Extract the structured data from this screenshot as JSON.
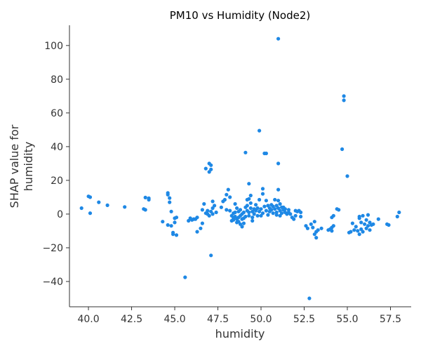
{
  "chart_data": {
    "type": "scatter",
    "title": "PM10 vs Humidity (Node2)",
    "xlabel": "humidity",
    "ylabel": [
      "SHAP value for",
      "humidity"
    ],
    "xlim": [
      38.9,
      58.7
    ],
    "ylim": [
      -55,
      112
    ],
    "xticks": [
      40.0,
      42.5,
      45.0,
      47.5,
      50.0,
      52.5,
      55.0,
      57.5
    ],
    "xtick_labels": [
      "40.0",
      "42.5",
      "45.0",
      "47.5",
      "50.0",
      "52.5",
      "55.0",
      "57.5"
    ],
    "yticks": [
      -40,
      -20,
      0,
      20,
      40,
      60,
      80,
      100
    ],
    "ytick_labels": [
      "−40",
      "−20",
      "0",
      "20",
      "40",
      "60",
      "80",
      "100"
    ],
    "grid": false,
    "marker_color": "#1E88E5",
    "series": [
      {
        "points": [
          [
            39.6,
            3.5
          ],
          [
            40.0,
            10.5
          ],
          [
            40.1,
            10.0
          ],
          [
            40.1,
            0.5
          ],
          [
            40.6,
            7.0
          ],
          [
            41.1,
            5.2
          ],
          [
            42.1,
            4.2
          ],
          [
            43.2,
            3.0
          ],
          [
            43.3,
            2.5
          ],
          [
            43.3,
            9.8
          ],
          [
            43.5,
            8.5
          ],
          [
            43.5,
            9.4
          ],
          [
            44.3,
            -4.5
          ],
          [
            44.6,
            12.5
          ],
          [
            44.6,
            11.5
          ],
          [
            44.6,
            -6.5
          ],
          [
            44.7,
            9.5
          ],
          [
            44.7,
            7.0
          ],
          [
            44.8,
            1.5
          ],
          [
            44.8,
            -7.0
          ],
          [
            44.9,
            -11.0
          ],
          [
            44.9,
            -12.0
          ],
          [
            45.0,
            -2.5
          ],
          [
            45.0,
            -5.0
          ],
          [
            45.1,
            -12.5
          ],
          [
            45.1,
            -2.0
          ],
          [
            45.6,
            -37.5
          ],
          [
            45.8,
            -4.0
          ],
          [
            45.9,
            -2.5
          ],
          [
            46.0,
            -3.5
          ],
          [
            46.1,
            -3.0
          ],
          [
            46.2,
            -3.0
          ],
          [
            46.3,
            -2.0
          ],
          [
            46.3,
            -10.5
          ],
          [
            46.5,
            -8.5
          ],
          [
            46.6,
            -5.5
          ],
          [
            46.6,
            2.5
          ],
          [
            46.7,
            6.0
          ],
          [
            46.8,
            27.0
          ],
          [
            46.8,
            0.5
          ],
          [
            46.9,
            2.0
          ],
          [
            46.9,
            0.0
          ],
          [
            47.0,
            25.0
          ],
          [
            47.0,
            30.0
          ],
          [
            47.0,
            -1.0
          ],
          [
            47.1,
            29.0
          ],
          [
            47.1,
            26.5
          ],
          [
            47.1,
            1.5
          ],
          [
            47.1,
            -24.5
          ],
          [
            47.2,
            7.5
          ],
          [
            47.2,
            3.5
          ],
          [
            47.2,
            0.0
          ],
          [
            47.3,
            5.0
          ],
          [
            47.4,
            1.0
          ],
          [
            47.7,
            4.0
          ],
          [
            47.8,
            7.5
          ],
          [
            47.9,
            8.5
          ],
          [
            48.0,
            11.5
          ],
          [
            48.0,
            2.5
          ],
          [
            48.1,
            14.5
          ],
          [
            48.2,
            10.0
          ],
          [
            48.2,
            2.0
          ],
          [
            48.3,
            -1.0
          ],
          [
            48.3,
            -4.0
          ],
          [
            48.4,
            0.5
          ],
          [
            48.4,
            -3.5
          ],
          [
            48.4,
            -2.5
          ],
          [
            48.5,
            6.0
          ],
          [
            48.5,
            1.0
          ],
          [
            48.5,
            -1.5
          ],
          [
            48.6,
            3.5
          ],
          [
            48.6,
            -3.0
          ],
          [
            48.6,
            -5.0
          ],
          [
            48.7,
            1.5
          ],
          [
            48.7,
            -2.0
          ],
          [
            48.7,
            -4.5
          ],
          [
            48.8,
            2.5
          ],
          [
            48.8,
            -1.0
          ],
          [
            48.8,
            -6.0
          ],
          [
            48.9,
            0.0
          ],
          [
            48.9,
            -3.0
          ],
          [
            48.9,
            -7.5
          ],
          [
            49.0,
            1.0
          ],
          [
            49.0,
            -2.5
          ],
          [
            49.0,
            -5.5
          ],
          [
            49.1,
            36.5
          ],
          [
            49.1,
            4.0
          ],
          [
            49.1,
            -1.5
          ],
          [
            49.2,
            8.5
          ],
          [
            49.2,
            5.0
          ],
          [
            49.2,
            2.0
          ],
          [
            49.3,
            18.0
          ],
          [
            49.3,
            9.0
          ],
          [
            49.3,
            1.0
          ],
          [
            49.3,
            -1.0
          ],
          [
            49.4,
            11.0
          ],
          [
            49.4,
            6.5
          ],
          [
            49.4,
            3.5
          ],
          [
            49.5,
            1.5
          ],
          [
            49.5,
            -2.0
          ],
          [
            49.5,
            -4.0
          ],
          [
            49.6,
            3.0
          ],
          [
            49.6,
            0.0
          ],
          [
            49.7,
            2.0
          ],
          [
            49.7,
            5.5
          ],
          [
            49.8,
            3.5
          ],
          [
            49.8,
            -1.0
          ],
          [
            49.9,
            49.5
          ],
          [
            49.9,
            8.5
          ],
          [
            49.9,
            1.5
          ],
          [
            50.0,
            3.0
          ],
          [
            50.0,
            -1.0
          ],
          [
            50.1,
            15.0
          ],
          [
            50.1,
            12.0
          ],
          [
            50.1,
            0.5
          ],
          [
            50.2,
            36.0
          ],
          [
            50.2,
            4.5
          ],
          [
            50.3,
            36.0
          ],
          [
            50.3,
            8.0
          ],
          [
            50.3,
            2.0
          ],
          [
            50.4,
            5.0
          ],
          [
            50.4,
            -0.5
          ],
          [
            50.5,
            3.5
          ],
          [
            50.5,
            1.5
          ],
          [
            50.6,
            5.5
          ],
          [
            50.6,
            2.5
          ],
          [
            50.7,
            4.5
          ],
          [
            50.7,
            0.5
          ],
          [
            50.8,
            8.5
          ],
          [
            50.8,
            3.0
          ],
          [
            50.9,
            5.0
          ],
          [
            50.9,
            1.0
          ],
          [
            50.9,
            -0.5
          ],
          [
            51.0,
            104.0
          ],
          [
            51.0,
            30.0
          ],
          [
            51.0,
            14.5
          ],
          [
            51.0,
            8.0
          ],
          [
            51.0,
            3.5
          ],
          [
            51.1,
            2.0
          ],
          [
            51.1,
            6.0
          ],
          [
            51.1,
            -1.0
          ],
          [
            51.2,
            4.0
          ],
          [
            51.2,
            0.5
          ],
          [
            51.3,
            2.5
          ],
          [
            51.3,
            4.0
          ],
          [
            51.4,
            1.0
          ],
          [
            51.4,
            3.0
          ],
          [
            51.5,
            0.0
          ],
          [
            51.6,
            2.5
          ],
          [
            51.6,
            1.0
          ],
          [
            51.7,
            0.0
          ],
          [
            51.8,
            -2.0
          ],
          [
            51.9,
            -3.0
          ],
          [
            52.0,
            2.0
          ],
          [
            52.0,
            -1.0
          ],
          [
            52.1,
            1.5
          ],
          [
            52.2,
            2.0
          ],
          [
            52.3,
            1.0
          ],
          [
            52.3,
            -1.5
          ],
          [
            52.6,
            -7.0
          ],
          [
            52.7,
            -8.5
          ],
          [
            52.8,
            -50.0
          ],
          [
            52.9,
            -6.0
          ],
          [
            53.0,
            -8.0
          ],
          [
            53.1,
            -4.5
          ],
          [
            53.1,
            -12.0
          ],
          [
            53.2,
            -14.0
          ],
          [
            53.2,
            -10.5
          ],
          [
            53.3,
            -9.5
          ],
          [
            53.5,
            -8.5
          ],
          [
            53.9,
            -9.5
          ],
          [
            54.0,
            -9.0
          ],
          [
            54.1,
            -10.0
          ],
          [
            54.1,
            -8.0
          ],
          [
            54.1,
            -2.0
          ],
          [
            54.2,
            -7.0
          ],
          [
            54.2,
            -1.0
          ],
          [
            54.4,
            3.0
          ],
          [
            54.5,
            2.5
          ],
          [
            54.7,
            38.5
          ],
          [
            54.8,
            67.5
          ],
          [
            54.8,
            70.0
          ],
          [
            55.0,
            22.5
          ],
          [
            55.1,
            -11.0
          ],
          [
            55.2,
            -10.5
          ],
          [
            55.3,
            -5.5
          ],
          [
            55.4,
            -9.5
          ],
          [
            55.5,
            -7.5
          ],
          [
            55.6,
            -10.0
          ],
          [
            55.7,
            -1.5
          ],
          [
            55.7,
            -2.5
          ],
          [
            55.7,
            -12.0
          ],
          [
            55.8,
            -5.0
          ],
          [
            55.8,
            -9.0
          ],
          [
            55.9,
            -10.5
          ],
          [
            55.9,
            -1.0
          ],
          [
            56.0,
            -6.0
          ],
          [
            56.1,
            -3.5
          ],
          [
            56.1,
            -8.5
          ],
          [
            56.2,
            -0.5
          ],
          [
            56.2,
            -7.0
          ],
          [
            56.3,
            -5.0
          ],
          [
            56.3,
            -9.5
          ],
          [
            56.4,
            -6.5
          ],
          [
            56.5,
            -6.0
          ],
          [
            56.8,
            -3.0
          ],
          [
            57.3,
            -6.0
          ],
          [
            57.4,
            -6.5
          ],
          [
            57.9,
            -1.5
          ],
          [
            58.0,
            1.0
          ]
        ]
      }
    ]
  }
}
